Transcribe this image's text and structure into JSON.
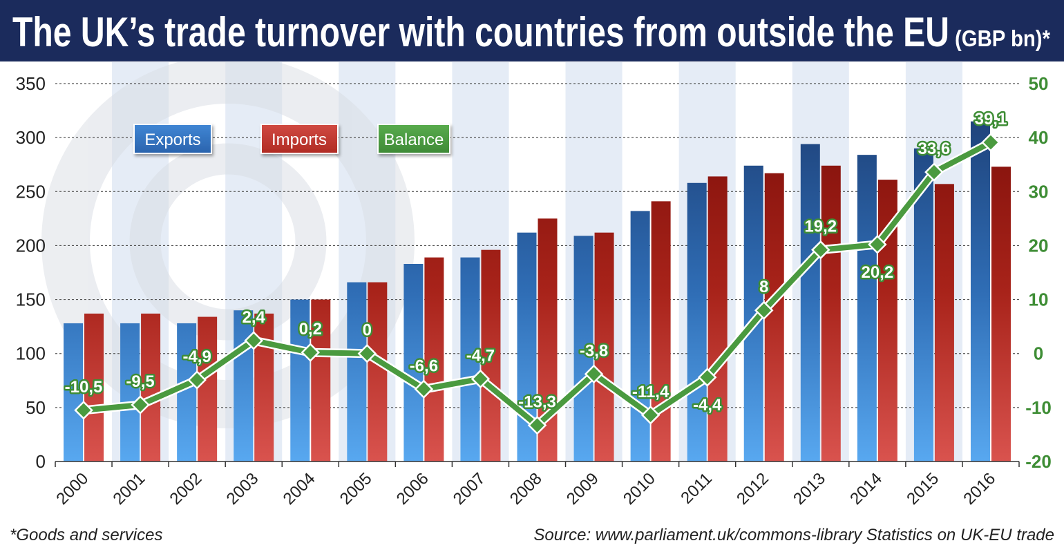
{
  "colors": {
    "header": "#1b2b5c",
    "exports": "#2e6bb5",
    "imports": "#b3291f",
    "balance": "#4a9a3f"
  },
  "chart_data": {
    "type": "bar",
    "title": "The UK’s trade turnover with countries from outside the EU",
    "title_unit": "(GBP bn)*",
    "categories": [
      "2000",
      "2001",
      "2002",
      "2003",
      "2004",
      "2005",
      "2006",
      "2007",
      "2008",
      "2009",
      "2010",
      "2011",
      "2012",
      "2013",
      "2014",
      "2015",
      "2016"
    ],
    "series": [
      {
        "name": "Exports",
        "type": "bar",
        "axis": "left",
        "values": [
          128,
          128,
          128,
          140,
          150,
          166,
          183,
          189,
          212,
          209,
          232,
          258,
          274,
          294,
          284,
          290,
          315
        ]
      },
      {
        "name": "Imports",
        "type": "bar",
        "axis": "left",
        "values": [
          137,
          137,
          134,
          137,
          150,
          166,
          189,
          196,
          225,
          212,
          241,
          264,
          267,
          274,
          261,
          257,
          273
        ]
      },
      {
        "name": "Balance",
        "type": "line",
        "axis": "right",
        "values": [
          -10.5,
          -9.5,
          -4.9,
          2.4,
          0.2,
          0,
          -6.6,
          -4.7,
          -13.3,
          -3.8,
          -11.4,
          -4.4,
          8,
          19.2,
          20.2,
          33.6,
          39.1
        ],
        "data_labels": [
          "-10,5",
          "-9,5",
          "-4,9",
          "2,4",
          "0,2",
          "0",
          "-6,6",
          "-4,7",
          "-13,3",
          "-3,8",
          "-11,4",
          "-4,4",
          "8",
          "19,2",
          "20,2",
          "33,6",
          "39,1"
        ]
      }
    ],
    "y_left": {
      "range": [
        0,
        350
      ],
      "ticks": [
        0,
        50,
        100,
        150,
        200,
        250,
        300,
        350
      ],
      "tick_labels": [
        "0",
        "50",
        "100",
        "150",
        "200",
        "250",
        "300",
        "350"
      ]
    },
    "y_right": {
      "range": [
        -20,
        50
      ],
      "ticks": [
        -20,
        -10,
        0,
        10,
        20,
        30,
        40,
        50
      ],
      "tick_labels": [
        "-20",
        "-10",
        "0",
        "10",
        "20",
        "30",
        "40",
        "50"
      ]
    },
    "grid": true,
    "legend": "top-left"
  },
  "footer": {
    "note": "*Goods and services",
    "source": "Source: www.parliament.uk/commons-library Statistics on UK-EU trade"
  }
}
